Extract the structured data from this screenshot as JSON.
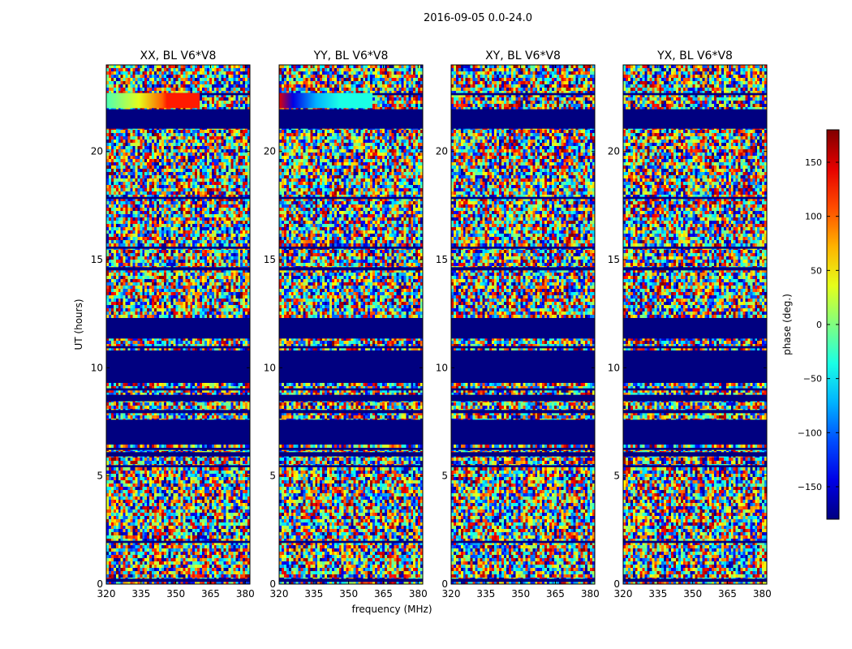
{
  "chart_data": {
    "type": "heatmap",
    "suptitle": "2016-09-05 0.0-24.0",
    "xlabel": "frequency (MHz)",
    "ylabel": "UT (hours)",
    "xlim": [
      320,
      382
    ],
    "ylim": [
      0,
      24
    ],
    "xticks": [
      320,
      335,
      350,
      365,
      380
    ],
    "yticks": [
      0,
      5,
      10,
      15,
      20
    ],
    "panels": [
      {
        "title": "XX, BL V6*V8",
        "pol": "XX"
      },
      {
        "title": "YY, BL V6*V8",
        "pol": "YY"
      },
      {
        "title": "XY, BL V6*V8",
        "pol": "XY"
      },
      {
        "title": "YX, BL V6*V8",
        "pol": "YX"
      }
    ],
    "colorbar": {
      "label": "phase (deg.)",
      "range": [
        -180,
        180
      ],
      "ticks": [
        -150,
        -100,
        -50,
        0,
        50,
        100,
        150
      ],
      "tick_labels": [
        "−150",
        "−100",
        "−50",
        "0",
        "50",
        "100",
        "150"
      ],
      "colormap": "jet"
    },
    "flagged_ut_ranges": [
      [
        0.1,
        0.25
      ],
      [
        1.9,
        2.0
      ],
      [
        5.4,
        5.5
      ],
      [
        5.9,
        6.1
      ],
      [
        6.2,
        6.3
      ],
      [
        6.45,
        7.6
      ],
      [
        7.9,
        8.05
      ],
      [
        8.45,
        8.75
      ],
      [
        8.95,
        9.05
      ],
      [
        9.3,
        10.8
      ],
      [
        10.9,
        11.0
      ],
      [
        11.35,
        12.3
      ],
      [
        14.5,
        14.65
      ],
      [
        15.5,
        15.6
      ],
      [
        17.8,
        17.9
      ],
      [
        21.05,
        21.95
      ],
      [
        22.6,
        22.7
      ]
    ]
  }
}
